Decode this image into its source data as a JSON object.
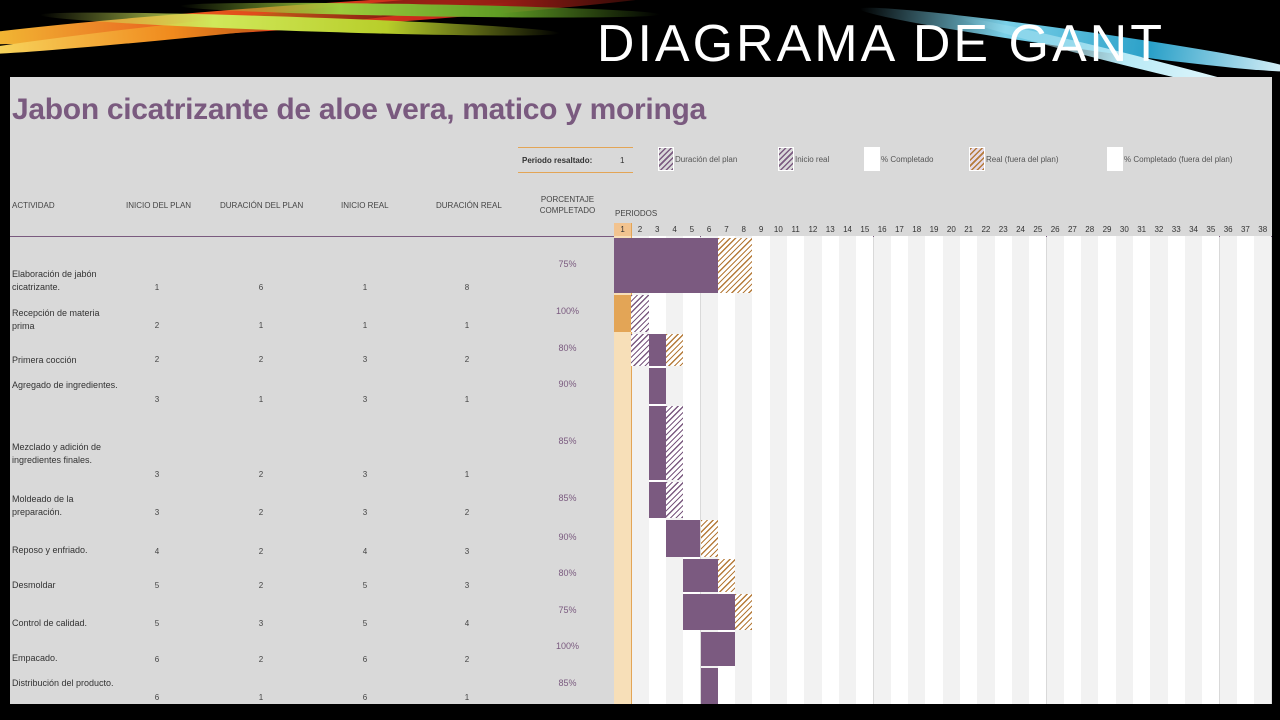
{
  "slide_title": "DIAGRAMA DE GANT",
  "project_title": "Jabon cicatrizante de aloe vera, matico y moringa",
  "legend": {
    "period_label": "Periodo resaltado:",
    "period_value": "1",
    "items": [
      {
        "label": "Duración del plan",
        "style": "purple-hatch"
      },
      {
        "label": "Inicio real",
        "style": "purple-hatch"
      },
      {
        "label": "% Completado",
        "style": "blank"
      },
      {
        "label": "Real (fuera del plan)",
        "style": "orange-hatch"
      },
      {
        "label": "% Completado (fuera del plan)",
        "style": "blank"
      }
    ]
  },
  "columns": {
    "activity": "ACTIVIDAD",
    "plan_start": "INICIO DEL PLAN",
    "plan_duration": "DURACIÓN DEL PLAN",
    "real_start": "INICIO REAL",
    "real_duration": "DURACIÓN REAL",
    "percent": "PORCENTAJE COMPLETADO",
    "periods": "PERIODOS"
  },
  "periods": [
    "1",
    "2",
    "3",
    "4",
    "5",
    "6",
    "7",
    "8",
    "9",
    "10",
    "11",
    "12",
    "13",
    "14",
    "15",
    "16",
    "17",
    "18",
    "19",
    "20",
    "21",
    "22",
    "23",
    "24",
    "25",
    "26",
    "27",
    "28",
    "29",
    "30",
    "31",
    "32",
    "33",
    "34",
    "35",
    "36",
    "37",
    "38"
  ],
  "highlighted_period": 1,
  "rows": [
    {
      "name": "Elaboración de jabón cicatrizante.",
      "plan_start": "1",
      "plan_duration": "6",
      "real_start": "1",
      "real_duration": "8",
      "percent": "75%"
    },
    {
      "name": "Recepción de materia prima",
      "plan_start": "2",
      "plan_duration": "1",
      "real_start": "1",
      "real_duration": "1",
      "percent": "100%"
    },
    {
      "name": "Primera cocción",
      "plan_start": "2",
      "plan_duration": "2",
      "real_start": "3",
      "real_duration": "2",
      "percent": "80%"
    },
    {
      "name": "Agregado de ingredientes.",
      "plan_start": "3",
      "plan_duration": "1",
      "real_start": "3",
      "real_duration": "1",
      "percent": "90%"
    },
    {
      "name": "Mezclado y adición de ingredientes finales.",
      "plan_start": "3",
      "plan_duration": "2",
      "real_start": "3",
      "real_duration": "1",
      "percent": "85%"
    },
    {
      "name": "Moldeado de la preparación.",
      "plan_start": "3",
      "plan_duration": "2",
      "real_start": "3",
      "real_duration": "2",
      "percent": "85%"
    },
    {
      "name": "Reposo y enfriado.",
      "plan_start": "4",
      "plan_duration": "2",
      "real_start": "4",
      "real_duration": "3",
      "percent": "90%"
    },
    {
      "name": "Desmoldar",
      "plan_start": "5",
      "plan_duration": "2",
      "real_start": "5",
      "real_duration": "3",
      "percent": "80%"
    },
    {
      "name": "Control de calidad.",
      "plan_start": "5",
      "plan_duration": "3",
      "real_start": "5",
      "real_duration": "4",
      "percent": "75%"
    },
    {
      "name": " Empacado.",
      "plan_start": "6",
      "plan_duration": "2",
      "real_start": "6",
      "real_duration": "2",
      "percent": "100%"
    },
    {
      "name": " Distribución del producto.",
      "plan_start": "6",
      "plan_duration": "1",
      "real_start": "6",
      "real_duration": "1",
      "percent": "85%"
    }
  ],
  "colors": {
    "accent_purple": "#7b5a80",
    "accent_orange": "#e3a556",
    "title_purple": "#7a5a7f"
  }
}
